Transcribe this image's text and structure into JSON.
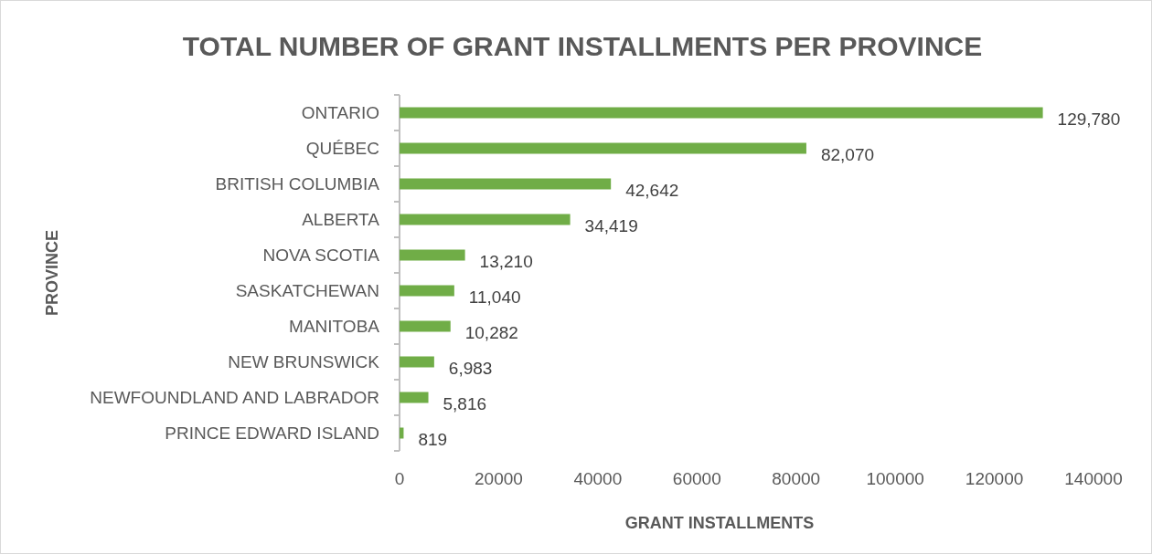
{
  "chart_data": {
    "type": "bar",
    "orientation": "horizontal",
    "title": "TOTAL NUMBER OF GRANT INSTALLMENTS PER PROVINCE",
    "xlabel": "GRANT INSTALLMENTS",
    "ylabel": "PROVINCE",
    "categories": [
      "ONTARIO",
      "QUÉBEC",
      "BRITISH COLUMBIA",
      "ALBERTA",
      "NOVA SCOTIA",
      "SASKATCHEWAN",
      "MANITOBA",
      "NEW BRUNSWICK",
      "NEWFOUNDLAND AND LABRADOR",
      "PRINCE EDWARD ISLAND"
    ],
    "values": [
      129780,
      82070,
      42642,
      34419,
      13210,
      11040,
      10282,
      6983,
      5816,
      819
    ],
    "value_labels": [
      "129,780",
      "82,070",
      "42,642",
      "34,419",
      "13,210",
      "11,040",
      "10,282",
      "6,983",
      "5,816",
      "819"
    ],
    "color": "#70ad47",
    "xlim": [
      0,
      140000
    ],
    "xticks": [
      0,
      20000,
      40000,
      60000,
      80000,
      100000,
      120000,
      140000
    ],
    "grid": false
  }
}
